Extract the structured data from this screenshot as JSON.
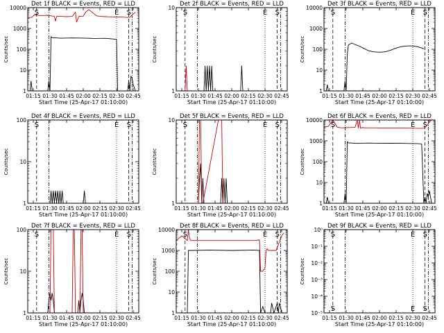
{
  "common": {
    "xlabel": "Start Time (25-Apr-17 01:10:00)",
    "ylabel": "Counts/sec",
    "xtick_labels": [
      "01:15",
      "01:30",
      "01:45",
      "02:00",
      "02:15",
      "02:30",
      "02:45"
    ],
    "xticks_min": [
      5,
      20,
      35,
      50,
      65,
      80,
      95
    ],
    "xlim_min": [
      0,
      100
    ],
    "markers": [
      {
        "label": "S",
        "x": 8,
        "style": "dash"
      },
      {
        "label": "",
        "x": 19,
        "style": "dashdot"
      },
      {
        "label": "E",
        "x": 80,
        "style": "dot"
      },
      {
        "label": "S",
        "x": 91,
        "style": "dash"
      },
      {
        "label": "",
        "x": 94,
        "style": "dashdot"
      }
    ]
  },
  "colors": {
    "events": "#000000",
    "lld": "#cc0000"
  },
  "chart_data": [
    {
      "type": "line",
      "title": "Det 1f BLACK = Events, RED = LLD",
      "ylabels": [
        "1",
        "10",
        "100",
        "1000",
        "10000"
      ],
      "ylim": [
        1,
        10000
      ],
      "series": [
        {
          "name": "Events",
          "color": "#000000",
          "x": [
            0,
            2,
            3,
            4,
            18,
            19,
            20,
            21,
            22,
            30,
            40,
            50,
            60,
            70,
            80,
            81,
            90,
            91,
            92,
            93,
            94,
            95,
            97
          ],
          "y": [
            1,
            1,
            3,
            1,
            1,
            3,
            1,
            400,
            360,
            340,
            350,
            345,
            330,
            335,
            300,
            1,
            1,
            3,
            1,
            5,
            4,
            2,
            1
          ]
        },
        {
          "name": "LLD",
          "color": "#cc0000",
          "x": [
            0,
            4,
            6,
            10,
            14,
            18,
            24,
            25,
            26,
            30,
            35,
            40,
            43,
            44,
            46,
            50,
            52,
            55,
            58,
            62,
            66,
            70,
            73,
            76,
            80,
            84,
            88,
            92,
            95,
            97
          ],
          "y": [
            3200,
            3500,
            4500,
            4200,
            4200,
            4300,
            3800,
            2200,
            3800,
            3800,
            3700,
            3800,
            6000,
            2000,
            3800,
            3900,
            6000,
            8000,
            6000,
            4000,
            3800,
            3700,
            3600,
            3600,
            3500,
            3600,
            3400,
            3400,
            5000,
            6000
          ]
        }
      ]
    },
    {
      "type": "line",
      "title": "Det 2f BLACK = Events, RED = LLD",
      "ylabels": [
        "1",
        "10"
      ],
      "ylim": [
        1,
        10
      ],
      "series": [
        {
          "name": "Events",
          "color": "#000000",
          "x": [
            0,
            25,
            26,
            27,
            28,
            29,
            30,
            31,
            32,
            33,
            34,
            58,
            59,
            60,
            61,
            100
          ],
          "y": [
            1,
            1,
            2,
            1,
            2,
            1,
            2,
            1,
            2,
            1,
            1,
            1,
            2,
            1,
            1,
            1
          ]
        },
        {
          "name": "LLD",
          "color": "#cc0000",
          "x": [
            8,
            9,
            10
          ],
          "y": [
            1,
            2,
            1
          ]
        }
      ]
    },
    {
      "type": "line",
      "title": "Det 3f BLACK = Events, RED = LLD",
      "ylabels": [
        "1",
        "10",
        "100",
        "1000",
        "10000"
      ],
      "ylim": [
        1,
        10000
      ],
      "series": [
        {
          "name": "Events",
          "color": "#000000",
          "x": [
            0,
            2,
            3,
            4,
            18,
            19,
            20,
            21,
            22,
            25,
            28,
            32,
            36,
            40,
            45,
            50,
            55,
            60,
            65,
            70,
            75,
            80,
            85,
            88,
            90
          ],
          "y": [
            1,
            1,
            2,
            1,
            1,
            3,
            1,
            60,
            160,
            200,
            170,
            140,
            110,
            85,
            75,
            72,
            75,
            90,
            115,
            135,
            145,
            145,
            130,
            115,
            105
          ]
        }
      ]
    },
    {
      "type": "line",
      "title": "Det 4f BLACK = Events, RED = LLD",
      "ylabels": [
        "1",
        "10",
        "100"
      ],
      "ylim": [
        1,
        100
      ],
      "series": [
        {
          "name": "Events",
          "color": "#000000",
          "x": [
            20,
            21,
            22,
            23,
            24,
            25,
            26,
            27,
            28,
            29,
            30,
            31,
            32,
            50,
            51,
            52
          ],
          "y": [
            1,
            2,
            1,
            2,
            1,
            2,
            1,
            2,
            1,
            2,
            1,
            2,
            1,
            1,
            2,
            1
          ]
        }
      ]
    },
    {
      "type": "line",
      "title": "Det 5f BLACK = Events, RED = LLD",
      "ylabels": [
        "1",
        "10"
      ],
      "ylim": [
        1,
        10
      ],
      "series": [
        {
          "name": "Events",
          "color": "#000000",
          "x": [
            20,
            21,
            22,
            23,
            24,
            25,
            26,
            40,
            41,
            42,
            43,
            44,
            45,
            46,
            47
          ],
          "y": [
            1,
            2,
            3,
            1,
            2,
            1,
            1,
            1,
            2,
            1,
            2,
            1,
            2,
            1,
            1
          ]
        },
        {
          "name": "LLD",
          "color": "#cc0000",
          "x": [
            20,
            21,
            22,
            23,
            24,
            38,
            39,
            40,
            41,
            42
          ],
          "y": [
            1,
            10,
            10,
            1,
            1,
            10,
            10,
            10,
            10,
            1
          ]
        }
      ]
    },
    {
      "type": "line",
      "title": "Det 6f BLACK = Events, RED = LLD",
      "ylabels": [
        "1",
        "10",
        "100",
        "1000",
        "10000"
      ],
      "ylim": [
        1,
        10000
      ],
      "series": [
        {
          "name": "Events",
          "color": "#000000",
          "x": [
            0,
            2,
            3,
            4,
            18,
            19,
            20,
            21,
            22,
            30,
            40,
            50,
            60,
            70,
            80,
            85,
            88,
            90,
            91,
            92,
            93,
            94,
            95,
            96,
            97
          ],
          "y": [
            1,
            1,
            2,
            1,
            1,
            3,
            1,
            900,
            800,
            750,
            780,
            760,
            770,
            760,
            740,
            730,
            700,
            1,
            2,
            1,
            3,
            2,
            4,
            2,
            1
          ]
        },
        {
          "name": "LLD",
          "color": "#cc0000",
          "x": [
            0,
            4,
            8,
            12,
            16,
            20,
            24,
            28,
            30,
            31,
            32,
            33,
            34,
            38,
            45,
            55,
            65,
            75,
            85,
            90,
            93,
            95,
            97
          ],
          "y": [
            4500,
            5000,
            10000,
            4500,
            4200,
            4300,
            4400,
            4500,
            10000,
            4000,
            10000,
            4000,
            4300,
            4200,
            4200,
            4100,
            4100,
            4100,
            4000,
            4000,
            5500,
            8000,
            10000
          ]
        }
      ]
    },
    {
      "type": "line",
      "title": "Det 7f BLACK = Events, RED = LLD",
      "ylabels": [
        "1",
        "10",
        "100"
      ],
      "ylim": [
        1,
        100
      ],
      "series": [
        {
          "name": "Events",
          "color": "#000000",
          "x": [
            18,
            19,
            20,
            21,
            22,
            23,
            24,
            25,
            45,
            46,
            47,
            48,
            49,
            50,
            51
          ],
          "y": [
            1,
            2,
            3,
            2,
            3,
            2,
            1,
            1,
            1,
            2,
            1,
            2,
            3,
            2,
            1
          ]
        },
        {
          "name": "LLD",
          "color": "#cc0000",
          "x": [
            20,
            21,
            22,
            23,
            24,
            40,
            41,
            42,
            43,
            47,
            48,
            49,
            50
          ],
          "y": [
            1,
            100,
            100,
            100,
            1,
            1,
            100,
            100,
            1,
            1,
            100,
            100,
            1
          ]
        }
      ]
    },
    {
      "type": "line",
      "title": "Det 8f BLACK = Events, RED = LLD",
      "ylabels": [
        "1",
        "10",
        "100",
        "1000",
        "10000"
      ],
      "ylim": [
        1,
        10000
      ],
      "series": [
        {
          "name": "Events",
          "color": "#000000",
          "x": [
            0,
            10,
            11,
            12,
            13,
            30,
            50,
            70,
            75,
            76,
            78,
            80,
            85,
            86,
            88,
            90,
            91,
            92,
            93,
            94,
            95
          ],
          "y": [
            1,
            1,
            1000,
            1000,
            1000,
            1050,
            1000,
            1050,
            1000,
            1,
            2,
            1,
            1,
            3,
            1,
            2,
            3,
            1,
            3,
            2,
            1
          ]
        },
        {
          "name": "LLD",
          "color": "#cc0000",
          "x": [
            0,
            5,
            10,
            11,
            12,
            13,
            20,
            30,
            40,
            50,
            60,
            65,
            70,
            75,
            76,
            78,
            80,
            81,
            82,
            83,
            85,
            90,
            95,
            97
          ],
          "y": [
            3000,
            5000,
            3000,
            10000,
            4000,
            3000,
            3000,
            3000,
            3000,
            3000,
            3000,
            3000,
            3000,
            3200,
            100,
            100,
            150,
            1000,
            1200,
            1000,
            1000,
            1000,
            5000,
            7000
          ]
        }
      ]
    },
    {
      "type": "line",
      "title": "Det 9f BLACK = Events, RED = LLD",
      "ylabels": [
        "10⁰",
        "10⁻¹",
        "10⁻²",
        "10⁻³",
        "10⁻⁴",
        "10⁻⁵"
      ],
      "ylim": [
        1e-05,
        1
      ],
      "series": []
    }
  ]
}
